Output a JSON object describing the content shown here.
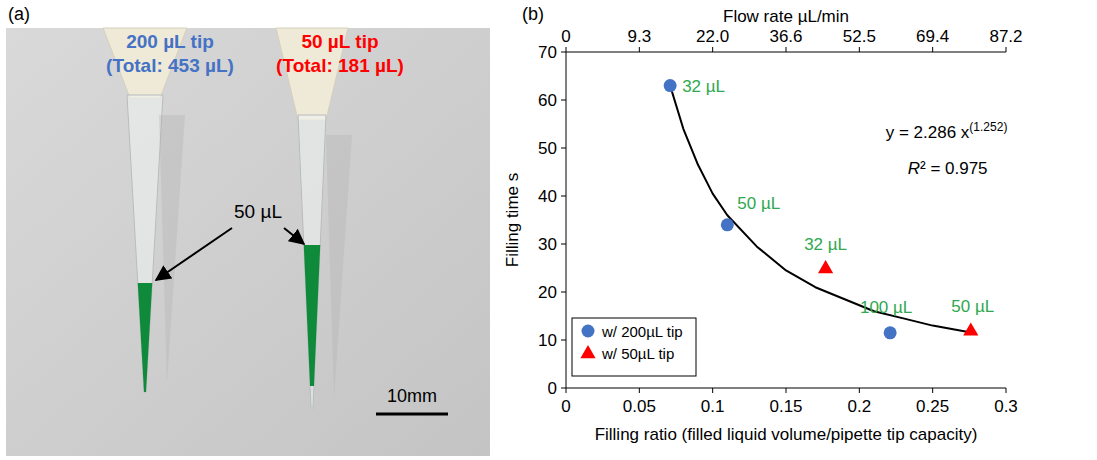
{
  "panel_labels": {
    "a": "(a)",
    "b": "(b)"
  },
  "photo": {
    "tips": [
      {
        "name": "200 µL tip",
        "total": "(Total: 453 µL)",
        "color": "#4472c4"
      },
      {
        "name": "50 µL tip",
        "total": "(Total: 181 µL)",
        "color": "#ff0000"
      }
    ],
    "fill_label": "50 µL",
    "scale_bar": "10mm"
  },
  "chart_data": {
    "type": "scatter",
    "x_label": "Filling ratio (filled liquid volume/pipette tip capacity)",
    "y_label": "Filling time  s",
    "x2_label": "Flow rate  µL/min",
    "xlim": [
      0,
      0.3
    ],
    "xticks": [
      0,
      0.05,
      0.1,
      0.15,
      0.2,
      0.25,
      0.3
    ],
    "x2lim": [
      0,
      0.3
    ],
    "x2ticks": [
      0,
      {
        "value": 0.05,
        "label": "9.3"
      },
      {
        "value": 0.1,
        "label": "22.0"
      },
      {
        "value": 0.15,
        "label": "36.6"
      },
      {
        "value": 0.2,
        "label": "52.5"
      },
      {
        "value": 0.25,
        "label": "69.4"
      },
      {
        "value": 0.3,
        "label": "87.2"
      }
    ],
    "ylim": [
      0,
      70
    ],
    "yticks": [
      0,
      10,
      20,
      30,
      40,
      50,
      60,
      70
    ],
    "grid": false,
    "legend": "lower left",
    "series": [
      {
        "name": "w/ 200µL tip",
        "color": "#4472c4",
        "marker": "circle",
        "x": [
          0.071,
          0.11,
          0.221
        ],
        "values": [
          63,
          34,
          11.5
        ],
        "labels": [
          "32 µL",
          "50 µL",
          "100 µL"
        ]
      },
      {
        "name": "w/ 50µL tip",
        "color": "#ff0000",
        "marker": "triangle",
        "x": [
          0.177,
          0.276
        ],
        "values": [
          25,
          12
        ],
        "labels": [
          "32 µL",
          "50 µL"
        ]
      }
    ],
    "trendline": {
      "x": [
        0.071,
        0.08,
        0.09,
        0.1,
        0.11,
        0.13,
        0.15,
        0.17,
        0.19,
        0.21,
        0.23,
        0.25,
        0.277
      ],
      "y": [
        63,
        54,
        46.5,
        40.5,
        36,
        29.5,
        24.5,
        21,
        18.5,
        16,
        14.5,
        13,
        11.5
      ],
      "equation": [
        "y = 2.286 x",
        "(1.252)"
      ],
      "r2": [
        "R",
        "² = 0.975"
      ]
    }
  }
}
